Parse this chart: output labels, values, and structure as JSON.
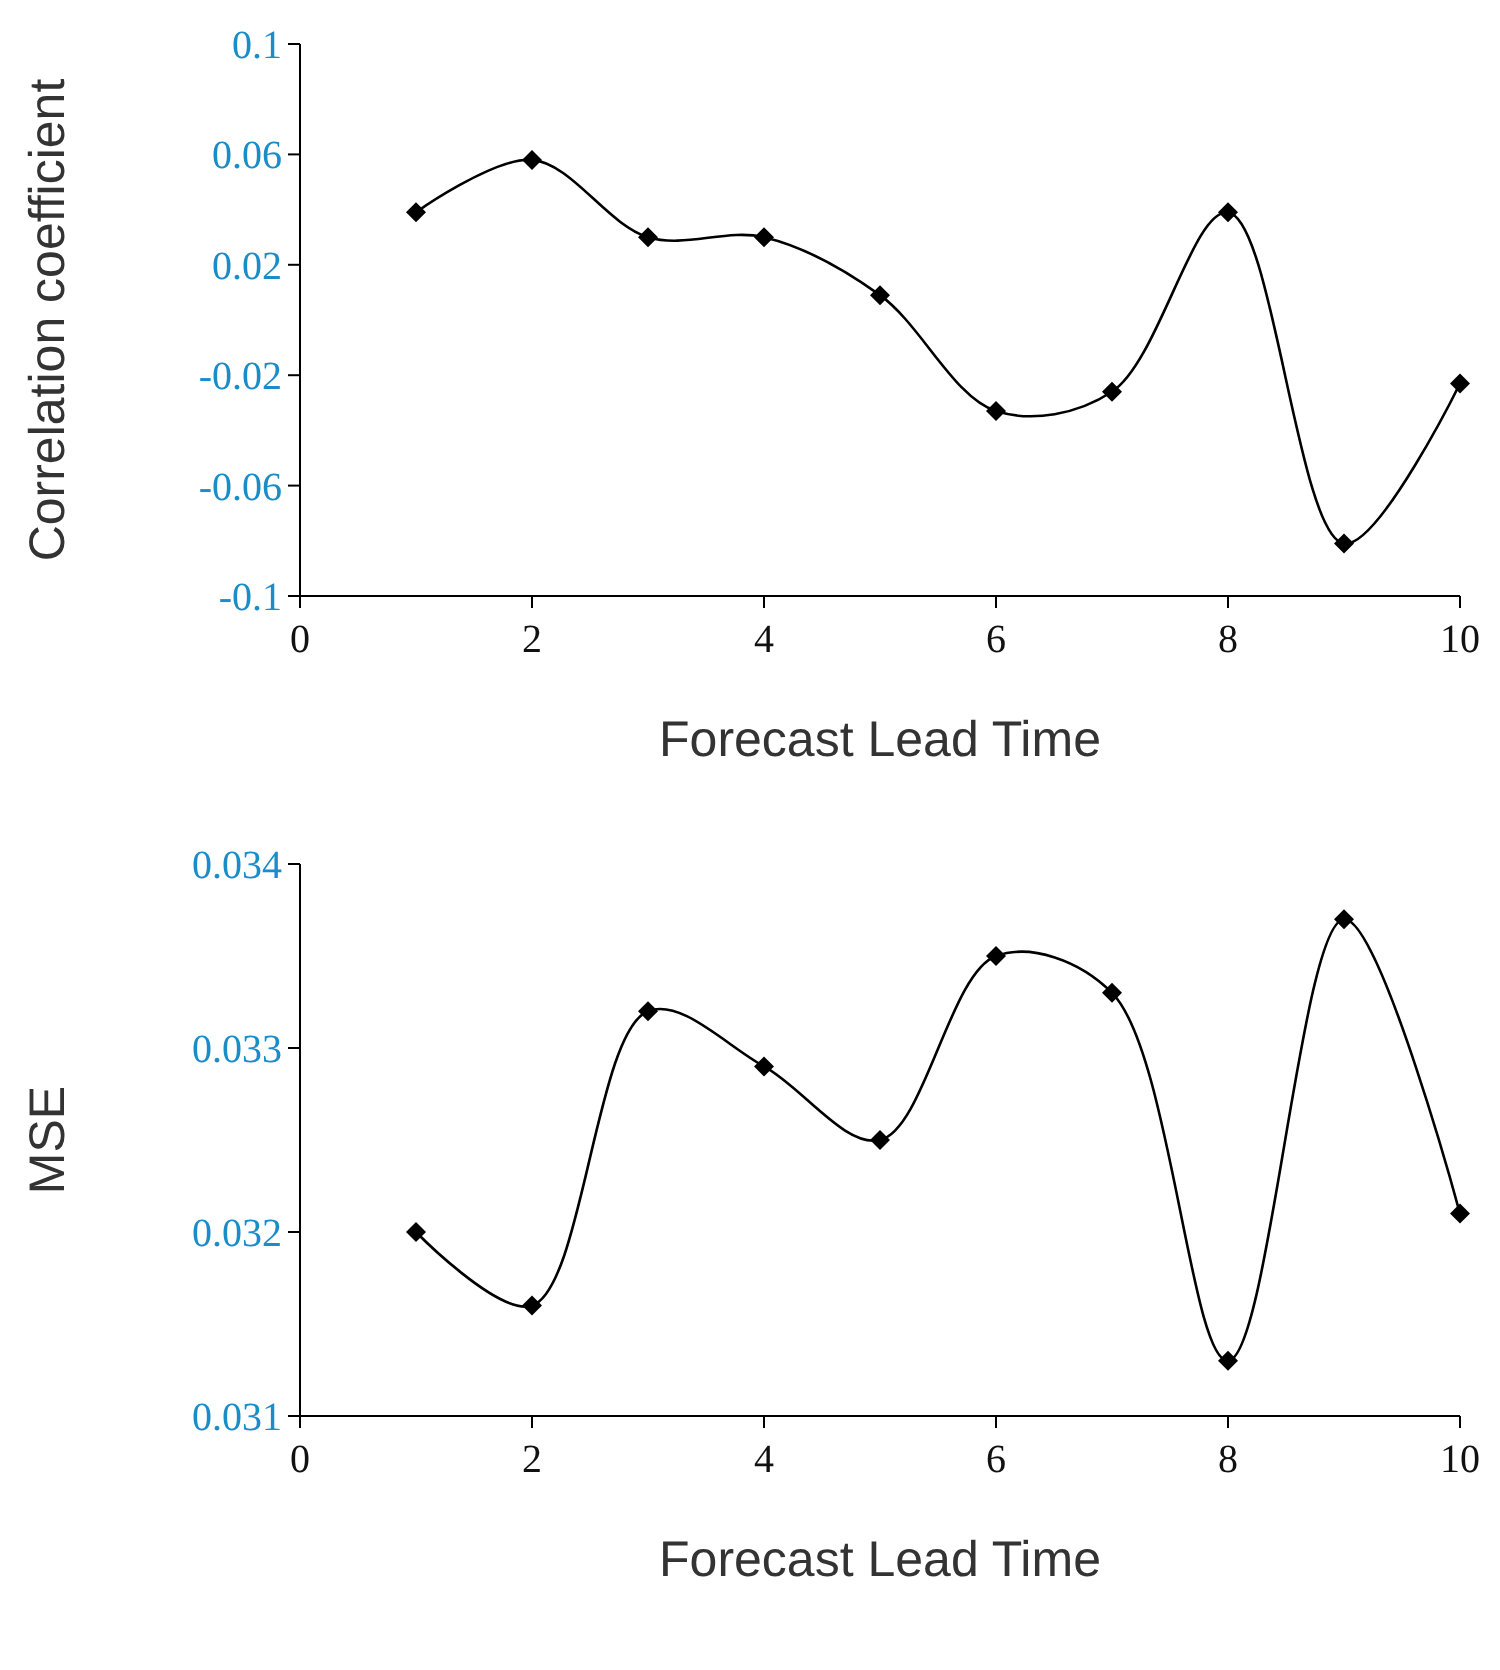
{
  "chart_data": [
    {
      "type": "line",
      "xlabel": "Forecast Lead Time",
      "ylabel": "Correlation coefficient",
      "x": [
        1,
        2,
        3,
        4,
        5,
        6,
        7,
        8,
        9,
        10
      ],
      "series": [
        {
          "color": "#000000",
          "values": [
            0.039,
            0.058,
            0.03,
            0.03,
            0.009,
            -0.033,
            -0.026,
            0.039,
            -0.081,
            -0.023
          ]
        }
      ],
      "xlim": [
        0,
        10
      ],
      "xticks": [
        0,
        2,
        4,
        6,
        8,
        10
      ],
      "ylim": [
        -0.1,
        0.1
      ],
      "yticks": [
        -0.1,
        -0.06,
        -0.02,
        0.02,
        0.06,
        0.1
      ],
      "marker": "diamond",
      "line_style": "solid"
    },
    {
      "type": "line",
      "xlabel": "Forecast Lead Time",
      "ylabel": "MSE",
      "x": [
        1,
        2,
        3,
        4,
        5,
        6,
        7,
        8,
        9,
        10
      ],
      "series": [
        {
          "color": "#000000",
          "values": [
            0.032,
            0.0316,
            0.0332,
            0.0329,
            0.0325,
            0.0335,
            0.0333,
            0.0313,
            0.0337,
            0.0321
          ]
        }
      ],
      "xlim": [
        0,
        10
      ],
      "xticks": [
        0,
        2,
        4,
        6,
        8,
        10
      ],
      "ylim": [
        0.031,
        0.034
      ],
      "yticks": [
        0.031,
        0.032,
        0.033,
        0.034
      ],
      "marker": "diamond",
      "line_style": "solid"
    }
  ]
}
